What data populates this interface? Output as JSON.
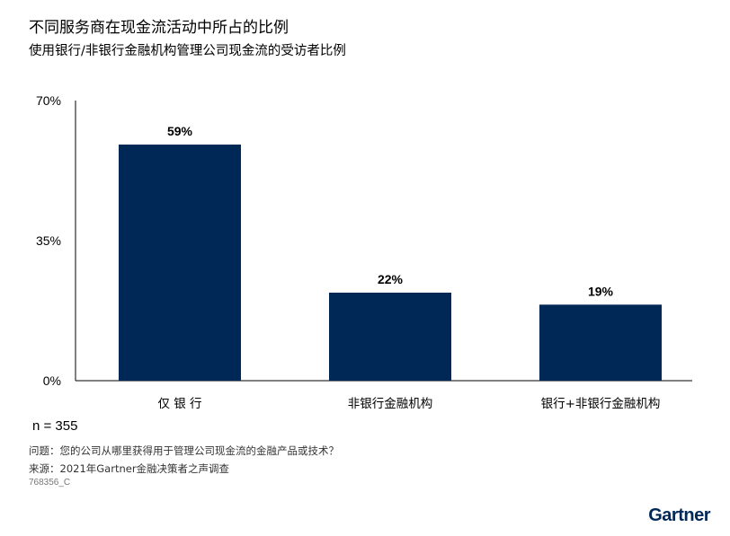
{
  "header": {
    "title": "不同服务商在现金流活动中所占的比例",
    "subtitle": "使用银行/非银行金融机构管理公司现金流的受访者比例"
  },
  "chart_data": {
    "type": "bar",
    "categories": [
      "仅 银 行",
      "非银行金融机构",
      "银行+非银行金融机构"
    ],
    "values": [
      59,
      22,
      19
    ],
    "value_labels": [
      "59%",
      "22%",
      "19%"
    ],
    "ylim": [
      0,
      70
    ],
    "yticks": [
      0,
      35,
      70
    ],
    "ytick_labels": [
      "0%",
      "35%",
      "70%"
    ],
    "bar_color": "#002856",
    "grid": false,
    "legend": "none"
  },
  "footer": {
    "sample": "n = 355",
    "question": "问题：您的公司从哪里获得用于管理公司现金流的金融产品或技术？",
    "source": "来源：2021年Gartner金融决策者之声调查",
    "doc_id": "768356_C",
    "logo": "Gartner"
  }
}
